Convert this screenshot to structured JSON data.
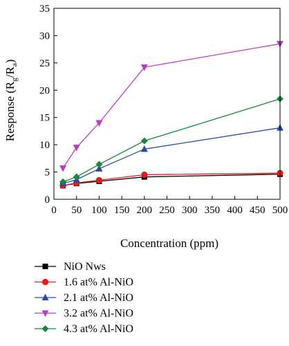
{
  "chart_data": {
    "type": "line",
    "xlabel": "Concentration (ppm)",
    "ylabel": {
      "main": "Response (R",
      "sub1": "g",
      "mid": "/R",
      "sub2": "a",
      "end": ")"
    },
    "xlim": [
      0,
      500
    ],
    "ylim": [
      0,
      35
    ],
    "xticks": [
      "0",
      "50",
      "100",
      "150",
      "200",
      "250",
      "300",
      "350",
      "400",
      "450",
      "500"
    ],
    "yticks": [
      "0",
      "5",
      "10",
      "15",
      "20",
      "25",
      "30",
      "35"
    ],
    "grid": false,
    "legend_position": "bottom",
    "x": [
      20,
      50,
      100,
      200,
      500
    ],
    "series": [
      {
        "name": "NiO Nws",
        "color": "#000000",
        "marker": "square",
        "values": [
          2.5,
          2.9,
          3.3,
          4.1,
          4.6
        ]
      },
      {
        "name": "1.6 at% Al-NiO",
        "color": "#e8191c",
        "marker": "circle",
        "values": [
          2.5,
          3.0,
          3.5,
          4.5,
          4.8
        ]
      },
      {
        "name": "2.1 at% Al-NiO",
        "color": "#2a4aa8",
        "marker": "triangle-up",
        "values": [
          2.9,
          3.6,
          5.6,
          9.2,
          13.1
        ]
      },
      {
        "name": "3.2 at% Al-NiO",
        "color": "#b63fc0",
        "marker": "triangle-down",
        "values": [
          5.7,
          9.5,
          14.0,
          24.2,
          28.5
        ]
      },
      {
        "name": "4.3 at% Al-NiO",
        "color": "#15873f",
        "marker": "diamond",
        "values": [
          3.2,
          4.1,
          6.4,
          10.7,
          18.4
        ]
      }
    ]
  }
}
